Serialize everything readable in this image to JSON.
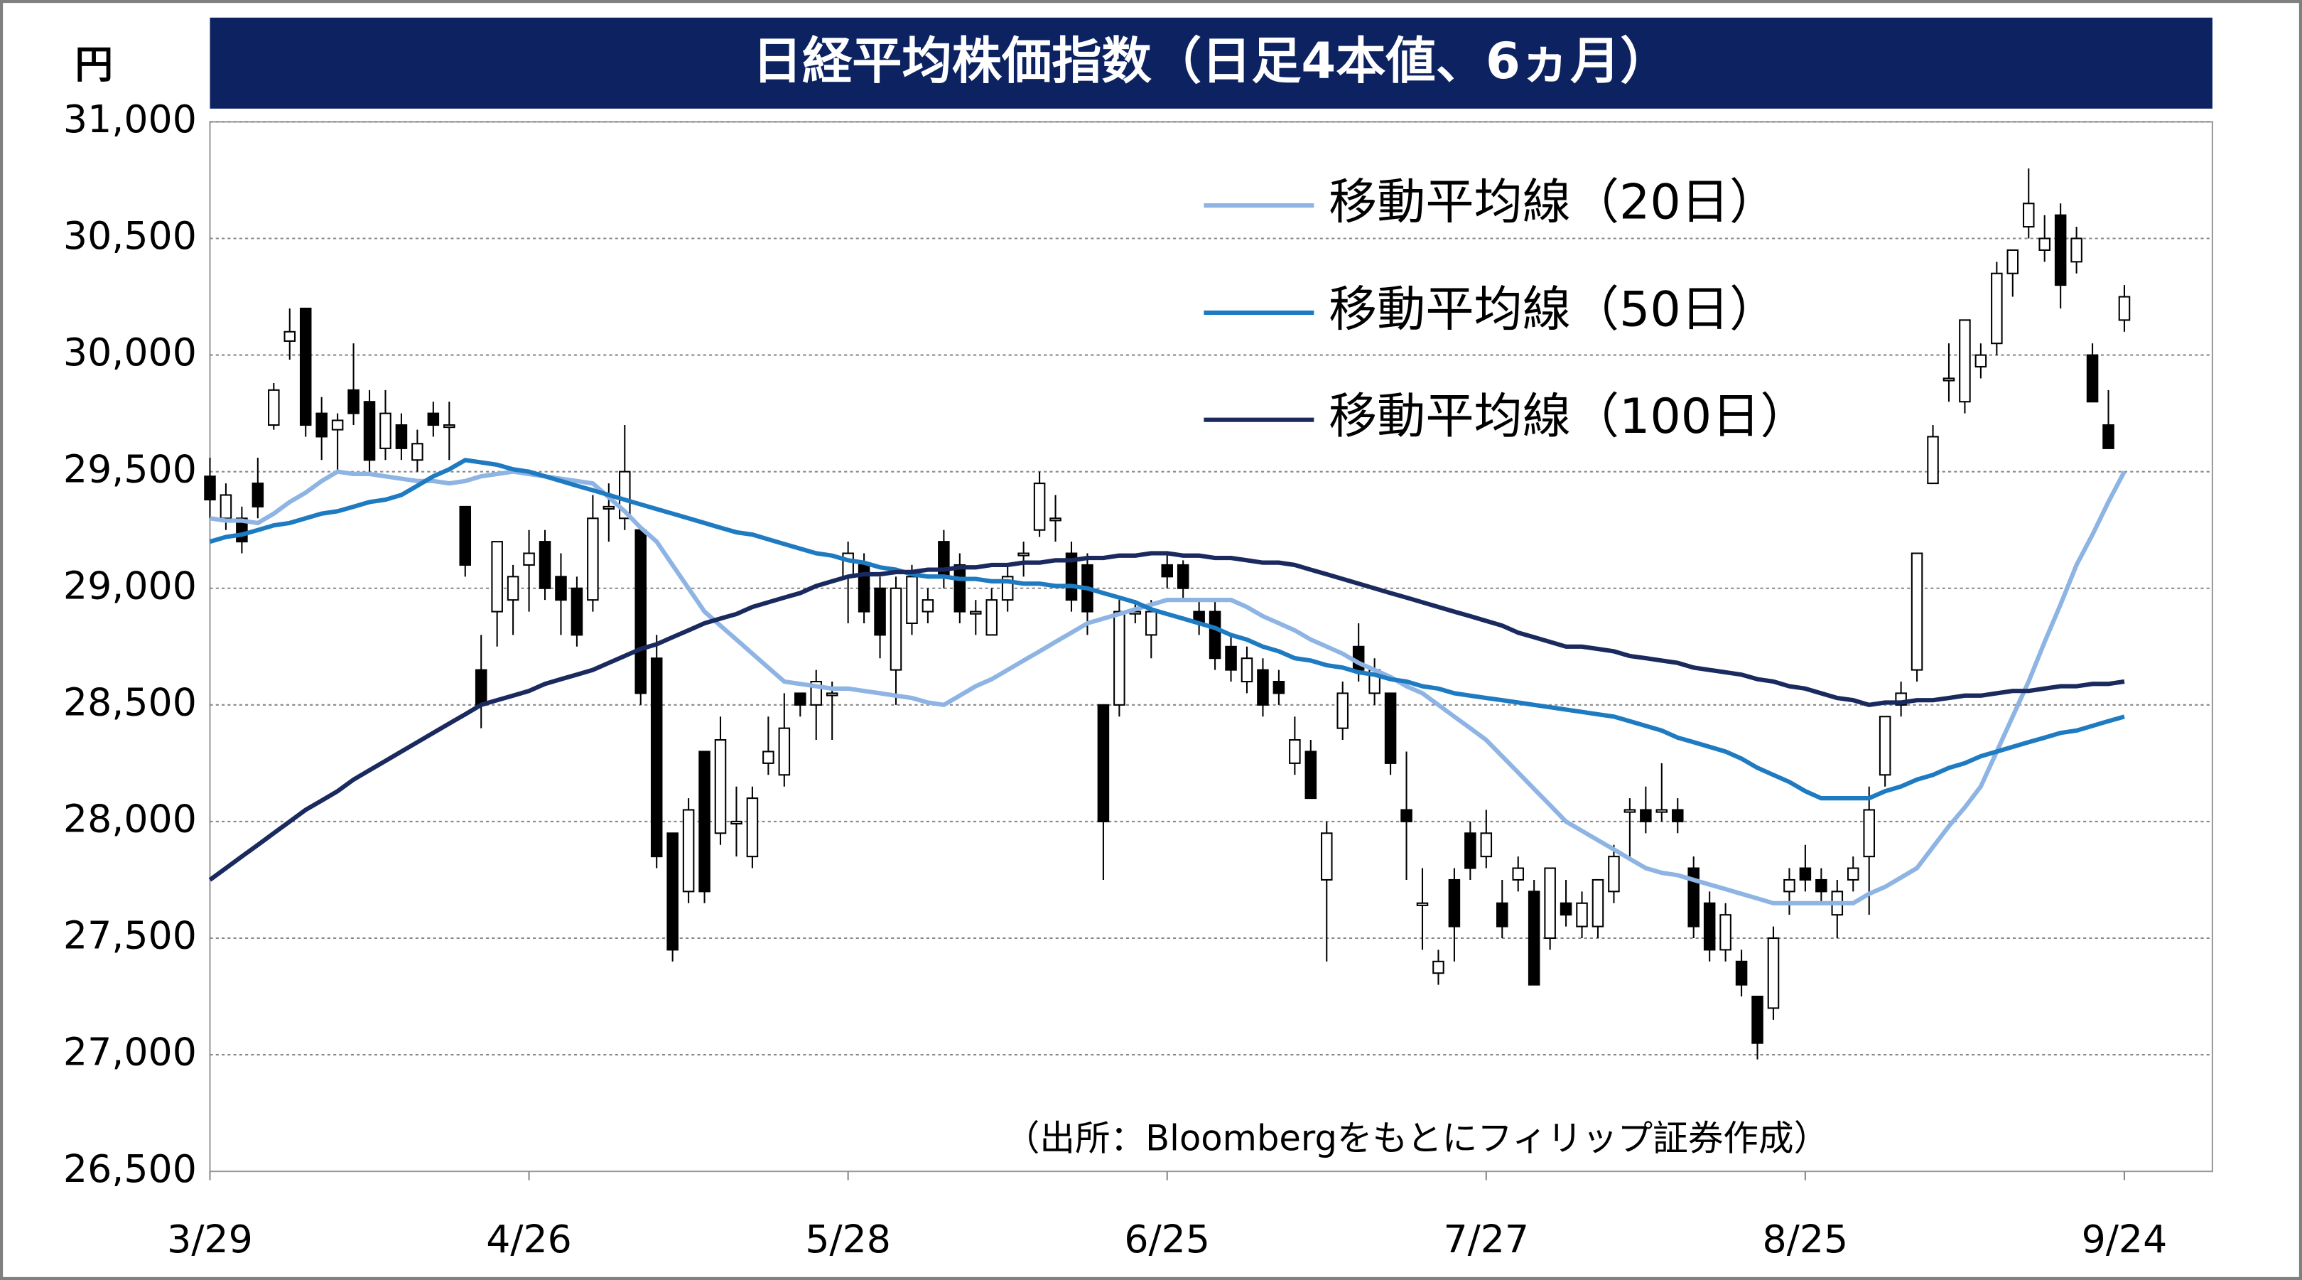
{
  "chart_data": {
    "type": "candlestick",
    "title": "日経平均株価指数（日足4本値、6ヵ月）",
    "ylabel": "円",
    "annotation": "（出所：Bloombergをもとにフィリップ証券作成）",
    "up_color": "#ffffff",
    "down_color": "#000000",
    "grid": true,
    "ylim": [
      26500,
      31000
    ],
    "yticks": [
      {
        "value": 26500,
        "label": "26,500"
      },
      {
        "value": 27000,
        "label": "27,000"
      },
      {
        "value": 27500,
        "label": "27,500"
      },
      {
        "value": 28000,
        "label": "28,000"
      },
      {
        "value": 28500,
        "label": "28,500"
      },
      {
        "value": 29000,
        "label": "29,000"
      },
      {
        "value": 29500,
        "label": "29,500"
      },
      {
        "value": 30000,
        "label": "30,000"
      },
      {
        "value": 30500,
        "label": "30,500"
      },
      {
        "value": 31000,
        "label": "31,000"
      }
    ],
    "categories": [
      "3/29",
      null,
      null,
      null,
      null,
      null,
      null,
      null,
      null,
      null,
      null,
      null,
      null,
      null,
      null,
      null,
      null,
      null,
      null,
      null,
      "4/26",
      null,
      null,
      null,
      null,
      null,
      null,
      null,
      null,
      null,
      null,
      null,
      null,
      null,
      null,
      null,
      null,
      null,
      null,
      null,
      "5/28",
      null,
      null,
      null,
      null,
      null,
      null,
      null,
      null,
      null,
      null,
      null,
      null,
      null,
      null,
      null,
      null,
      null,
      null,
      null,
      "6/25",
      null,
      null,
      null,
      null,
      null,
      null,
      null,
      null,
      null,
      null,
      null,
      null,
      null,
      null,
      null,
      null,
      null,
      null,
      null,
      "7/27",
      null,
      null,
      null,
      null,
      null,
      null,
      null,
      null,
      null,
      null,
      null,
      null,
      null,
      null,
      null,
      null,
      null,
      null,
      null,
      "8/25",
      null,
      null,
      null,
      null,
      null,
      null,
      null,
      null,
      null,
      null,
      null,
      null,
      null,
      null,
      null,
      null,
      null,
      null,
      null,
      "9/24"
    ],
    "open": [
      29480,
      29300,
      29300,
      29450,
      29700,
      30060,
      30200,
      29750,
      29680,
      29850,
      29800,
      29600,
      29700,
      29550,
      29750,
      29700,
      29350,
      28650,
      28900,
      28950,
      29100,
      29200,
      29050,
      29000,
      28950,
      29350,
      29300,
      29250,
      28700,
      27950,
      27700,
      28300,
      27950,
      28000,
      27850,
      28250,
      28200,
      28550,
      28500,
      28550,
      29050,
      29100,
      29000,
      28650,
      28850,
      28900,
      29200,
      29100,
      28900,
      28800,
      28950,
      29150,
      29250,
      29300,
      29150,
      29100,
      28500,
      28500,
      28900,
      28800,
      29100,
      29100,
      28900,
      28900,
      28750,
      28600,
      28650,
      28600,
      28250,
      28300,
      27750,
      28400,
      28750,
      28550,
      28550,
      28050,
      27650,
      27350,
      27750,
      27950,
      27850,
      27650,
      27750,
      27700,
      27500,
      27650,
      27550,
      27550,
      27700,
      28050,
      28050,
      28050,
      28050,
      27800,
      27650,
      27450,
      27400,
      27250,
      27200,
      27700,
      27800,
      27750,
      27600,
      27750,
      27850,
      28200,
      28500,
      28650,
      29450,
      29900,
      29800,
      29950,
      30050,
      30350,
      30550,
      30450,
      30600,
      30400,
      30000,
      29700,
      30150
    ],
    "high": [
      29560,
      29450,
      29350,
      29560,
      29880,
      30200,
      30200,
      29820,
      29750,
      30050,
      29850,
      29850,
      29750,
      29680,
      29800,
      29800,
      29350,
      28800,
      29200,
      29100,
      29250,
      29250,
      29150,
      29050,
      29400,
      29450,
      29700,
      29250,
      28800,
      27950,
      28100,
      28300,
      28450,
      28150,
      28150,
      28450,
      28550,
      28550,
      28650,
      28600,
      29200,
      29150,
      29050,
      29050,
      29100,
      29000,
      29250,
      29150,
      28950,
      29000,
      29100,
      29200,
      29500,
      29400,
      29200,
      29150,
      28500,
      28950,
      28950,
      28950,
      29150,
      29120,
      28950,
      28950,
      28800,
      28750,
      28700,
      28650,
      28450,
      28350,
      28000,
      28600,
      28850,
      28700,
      28550,
      28300,
      27800,
      27450,
      27800,
      28000,
      28050,
      27750,
      27850,
      27750,
      27800,
      27750,
      27700,
      27750,
      27900,
      28100,
      28150,
      28250,
      28100,
      27850,
      27700,
      27650,
      27450,
      27250,
      27550,
      27800,
      27900,
      27800,
      27750,
      27850,
      28150,
      28450,
      28600,
      29150,
      29700,
      30050,
      30150,
      30050,
      30400,
      30450,
      30800,
      30600,
      30650,
      30550,
      30050,
      29850,
      30300
    ],
    "low": [
      29300,
      29250,
      29150,
      29300,
      29680,
      29980,
      29650,
      29550,
      29500,
      29700,
      29500,
      29550,
      29550,
      29500,
      29650,
      29550,
      29050,
      28400,
      28750,
      28800,
      28900,
      28950,
      28800,
      28750,
      28900,
      29200,
      29250,
      28500,
      27800,
      27400,
      27650,
      27650,
      27900,
      27850,
      27800,
      28200,
      28150,
      28450,
      28350,
      28350,
      28850,
      28850,
      28700,
      28500,
      28800,
      28850,
      29000,
      28850,
      28800,
      28800,
      28900,
      29050,
      29220,
      29200,
      28900,
      28800,
      27750,
      28450,
      28850,
      28700,
      29000,
      28950,
      28800,
      28650,
      28600,
      28550,
      28450,
      28500,
      28200,
      28100,
      27400,
      28350,
      28600,
      28500,
      28200,
      27750,
      27450,
      27300,
      27400,
      27750,
      27800,
      27500,
      27700,
      27300,
      27450,
      27550,
      27500,
      27500,
      27650,
      27850,
      27950,
      28000,
      27950,
      27500,
      27400,
      27400,
      27250,
      26980,
      27150,
      27600,
      27700,
      27650,
      27500,
      27700,
      27600,
      28150,
      28450,
      28600,
      29450,
      29800,
      29750,
      29900,
      30000,
      30250,
      30500,
      30400,
      30200,
      30350,
      29800,
      29600,
      30100
    ],
    "close": [
      29380,
      29400,
      29200,
      29350,
      29850,
      30100,
      29700,
      29650,
      29720,
      29750,
      29550,
      29750,
      29600,
      29620,
      29700,
      29700,
      29100,
      28500,
      29200,
      29050,
      29150,
      29000,
      28950,
      28800,
      29300,
      29350,
      29500,
      28550,
      27850,
      27450,
      28050,
      27700,
      28350,
      28000,
      28100,
      28300,
      28400,
      28500,
      28600,
      28550,
      29150,
      28900,
      28800,
      29000,
      29050,
      28950,
      29050,
      28900,
      28900,
      28950,
      29050,
      29150,
      29450,
      29300,
      28950,
      28900,
      28000,
      28900,
      28900,
      28900,
      29050,
      29000,
      28850,
      28700,
      28650,
      28700,
      28500,
      28550,
      28350,
      28100,
      27950,
      28550,
      28650,
      28650,
      28250,
      28000,
      27650,
      27400,
      27550,
      27800,
      27950,
      27550,
      27800,
      27300,
      27800,
      27600,
      27650,
      27750,
      27850,
      28050,
      28000,
      28050,
      28000,
      27550,
      27450,
      27600,
      27300,
      27050,
      27500,
      27750,
      27750,
      27700,
      27700,
      27800,
      28050,
      28450,
      28550,
      29150,
      29650,
      29900,
      30150,
      30000,
      30350,
      30450,
      30650,
      30500,
      30300,
      30500,
      29800,
      29600,
      30250
    ],
    "series": [
      {
        "name": "移動平均線（20日）",
        "color": "#8eb4e3",
        "values": [
          29300,
          29290,
          29290,
          29280,
          29320,
          29370,
          29410,
          29460,
          29500,
          29490,
          29490,
          29480,
          29470,
          29460,
          29460,
          29450,
          29460,
          29480,
          29490,
          29500,
          29490,
          29480,
          29470,
          29460,
          29450,
          29390,
          29330,
          29260,
          29200,
          29100,
          29000,
          28900,
          28840,
          28780,
          28720,
          28660,
          28600,
          28590,
          28580,
          28570,
          28570,
          28560,
          28550,
          28540,
          28530,
          28510,
          28500,
          28540,
          28580,
          28610,
          28650,
          28690,
          28730,
          28770,
          28810,
          28850,
          28870,
          28890,
          28910,
          28930,
          28950,
          28950,
          28950,
          28950,
          28950,
          28920,
          28880,
          28850,
          28820,
          28780,
          28750,
          28720,
          28680,
          28650,
          28620,
          28580,
          28550,
          28500,
          28450,
          28400,
          28350,
          28280,
          28210,
          28140,
          28070,
          28000,
          27960,
          27920,
          27880,
          27840,
          27800,
          27780,
          27770,
          27750,
          27730,
          27710,
          27690,
          27670,
          27650,
          27650,
          27650,
          27650,
          27650,
          27650,
          27690,
          27720,
          27760,
          27800,
          27890,
          27980,
          28060,
          28150,
          28300,
          28450,
          28600,
          28770,
          28930,
          29100,
          29230,
          29370,
          29500
        ]
      },
      {
        "name": "移動平均線（50日）",
        "color": "#1f7bc1",
        "values": [
          29200,
          29220,
          29230,
          29250,
          29270,
          29280,
          29300,
          29320,
          29330,
          29350,
          29370,
          29380,
          29400,
          29440,
          29480,
          29510,
          29550,
          29540,
          29530,
          29510,
          29500,
          29480,
          29460,
          29440,
          29420,
          29400,
          29380,
          29360,
          29340,
          29320,
          29300,
          29280,
          29260,
          29240,
          29230,
          29210,
          29190,
          29170,
          29150,
          29140,
          29120,
          29110,
          29090,
          29080,
          29060,
          29050,
          29050,
          29040,
          29040,
          29030,
          29030,
          29020,
          29020,
          29010,
          29010,
          29000,
          28980,
          28960,
          28940,
          28910,
          28890,
          28870,
          28850,
          28830,
          28800,
          28780,
          28750,
          28730,
          28700,
          28690,
          28670,
          28660,
          28640,
          28630,
          28610,
          28600,
          28580,
          28570,
          28550,
          28540,
          28530,
          28520,
          28510,
          28500,
          28490,
          28480,
          28470,
          28460,
          28450,
          28430,
          28410,
          28390,
          28360,
          28340,
          28320,
          28300,
          28270,
          28230,
          28200,
          28170,
          28130,
          28100,
          28100,
          28100,
          28100,
          28130,
          28150,
          28180,
          28200,
          28230,
          28250,
          28280,
          28300,
          28320,
          28340,
          28360,
          28380,
          28390,
          28410,
          28430,
          28450
        ]
      },
      {
        "name": "移動平均線（100日）",
        "color": "#1a2a5e",
        "values": [
          27750,
          27800,
          27850,
          27900,
          27950,
          28000,
          28050,
          28090,
          28130,
          28180,
          28220,
          28260,
          28300,
          28340,
          28380,
          28420,
          28460,
          28500,
          28520,
          28540,
          28560,
          28590,
          28610,
          28630,
          28650,
          28680,
          28710,
          28740,
          28760,
          28790,
          28820,
          28850,
          28870,
          28890,
          28920,
          28940,
          28960,
          28980,
          29010,
          29030,
          29050,
          29060,
          29060,
          29070,
          29070,
          29080,
          29080,
          29090,
          29090,
          29100,
          29100,
          29110,
          29110,
          29120,
          29120,
          29130,
          29130,
          29140,
          29140,
          29150,
          29150,
          29140,
          29140,
          29130,
          29130,
          29120,
          29110,
          29110,
          29100,
          29080,
          29060,
          29040,
          29020,
          29000,
          28980,
          28960,
          28940,
          28920,
          28900,
          28880,
          28860,
          28840,
          28810,
          28790,
          28770,
          28750,
          28750,
          28740,
          28730,
          28710,
          28700,
          28690,
          28680,
          28660,
          28650,
          28640,
          28630,
          28610,
          28600,
          28580,
          28570,
          28550,
          28530,
          28520,
          28500,
          28510,
          28510,
          28520,
          28520,
          28530,
          28540,
          28540,
          28550,
          28560,
          28560,
          28570,
          28580,
          28580,
          28590,
          28590,
          28600
        ]
      }
    ]
  }
}
